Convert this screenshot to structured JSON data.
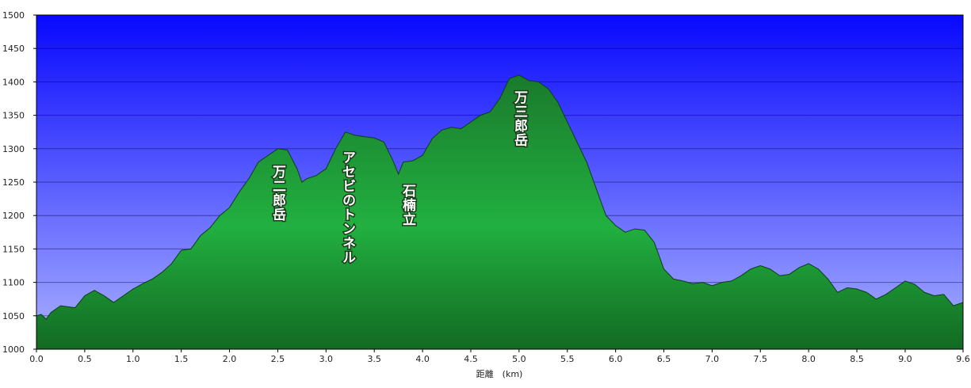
{
  "chart_data": {
    "type": "area",
    "xlabel": "距離　(km)",
    "x": [
      0,
      0.05,
      0.1,
      0.15,
      0.25,
      0.4,
      0.5,
      0.6,
      0.7,
      0.8,
      0.9,
      1.0,
      1.1,
      1.2,
      1.3,
      1.4,
      1.5,
      1.6,
      1.7,
      1.8,
      1.9,
      2.0,
      2.1,
      2.2,
      2.3,
      2.4,
      2.5,
      2.6,
      2.7,
      2.75,
      2.8,
      2.9,
      3.0,
      3.1,
      3.2,
      3.3,
      3.4,
      3.5,
      3.6,
      3.7,
      3.75,
      3.8,
      3.9,
      4.0,
      4.1,
      4.2,
      4.3,
      4.4,
      4.5,
      4.6,
      4.7,
      4.8,
      4.9,
      5.0,
      5.1,
      5.2,
      5.3,
      5.4,
      5.5,
      5.6,
      5.7,
      5.8,
      5.9,
      6.0,
      6.1,
      6.2,
      6.3,
      6.4,
      6.5,
      6.6,
      6.7,
      6.8,
      6.9,
      7.0,
      7.1,
      7.2,
      7.3,
      7.4,
      7.5,
      7.6,
      7.7,
      7.8,
      7.9,
      8.0,
      8.1,
      8.2,
      8.3,
      8.4,
      8.5,
      8.6,
      8.7,
      8.8,
      8.9,
      9.0,
      9.1,
      9.2,
      9.3,
      9.4,
      9.5,
      9.6
    ],
    "values": [
      1050,
      1052,
      1045,
      1055,
      1065,
      1062,
      1080,
      1088,
      1080,
      1070,
      1080,
      1090,
      1098,
      1105,
      1115,
      1128,
      1148,
      1150,
      1170,
      1182,
      1200,
      1212,
      1235,
      1255,
      1280,
      1290,
      1300,
      1298,
      1270,
      1250,
      1255,
      1260,
      1270,
      1300,
      1325,
      1320,
      1318,
      1316,
      1310,
      1280,
      1262,
      1280,
      1282,
      1290,
      1315,
      1328,
      1332,
      1330,
      1340,
      1350,
      1355,
      1375,
      1405,
      1410,
      1402,
      1400,
      1390,
      1370,
      1340,
      1310,
      1280,
      1240,
      1200,
      1185,
      1175,
      1180,
      1178,
      1160,
      1120,
      1105,
      1102,
      1098,
      1100,
      1095,
      1100,
      1102,
      1110,
      1120,
      1125,
      1120,
      1110,
      1112,
      1122,
      1128,
      1120,
      1105,
      1085,
      1092,
      1090,
      1085,
      1075,
      1082,
      1092,
      1102,
      1097,
      1085,
      1080,
      1082,
      1065,
      1070
    ],
    "color": "#22b040",
    "xlim": [
      0,
      9.6
    ],
    "ylim": [
      1000,
      1500
    ],
    "xticks": [
      {
        "value": 0,
        "label": "0.0"
      },
      0.5,
      {
        "value": 1,
        "label": "1.0"
      },
      1.5,
      {
        "value": 2,
        "label": "2.0"
      },
      2.5,
      {
        "value": 3,
        "label": "3.0"
      },
      3.5,
      {
        "value": 4,
        "label": "4.0"
      },
      4.5,
      {
        "value": 5,
        "label": "5.0"
      },
      5.5,
      {
        "value": 6,
        "label": "6.0"
      },
      6.5,
      {
        "value": 7,
        "label": "7.0"
      },
      7.5,
      {
        "value": 8,
        "label": "8.0"
      },
      8.5,
      {
        "value": 9,
        "label": "9.0"
      },
      9.6
    ],
    "yticks": [
      1000,
      1050,
      1100,
      1150,
      1200,
      1250,
      1300,
      1350,
      1400,
      1450,
      1500
    ],
    "grid": true,
    "annotations": [
      "万二郎岳",
      "アセビのトンネル",
      "石楠立",
      "万三郎岳"
    ]
  }
}
